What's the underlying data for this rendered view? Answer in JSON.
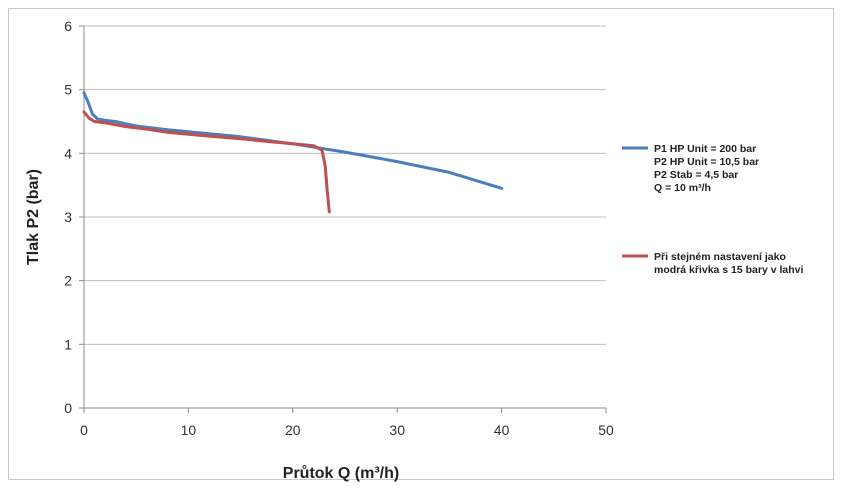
{
  "chart_data": {
    "type": "line",
    "xlabel": "Průtok Q (m³/h)",
    "ylabel": "Tlak P2 (bar)",
    "xlim": [
      0,
      50
    ],
    "ylim": [
      0,
      6
    ],
    "x_ticks": [
      0,
      10,
      20,
      30,
      40,
      50
    ],
    "y_ticks": [
      0,
      1,
      2,
      3,
      4,
      5,
      6
    ],
    "grid": "horizontal",
    "legend_position": "right",
    "series": [
      {
        "name": "P1 HP Unit = 200 bar\nP2 HP Unit = 10,5 bar\nP2 Stab = 4,5 bar\nQ = 10 m³/h",
        "color": "#4a7ebf",
        "x": [
          0,
          0.4,
          0.8,
          1.3,
          2,
          3,
          5,
          8,
          10,
          15,
          20,
          25,
          30,
          35,
          40
        ],
        "y": [
          4.95,
          4.8,
          4.62,
          4.54,
          4.52,
          4.5,
          4.43,
          4.37,
          4.34,
          4.26,
          4.15,
          4.02,
          3.87,
          3.7,
          3.45
        ]
      },
      {
        "name": "Při stejném nastavení jako\nmodrá křivka s 15 bary v lahvi",
        "color": "#c0504d",
        "x": [
          0,
          0.5,
          1,
          2,
          4,
          6,
          8,
          10,
          12,
          15,
          18,
          20,
          22,
          22.8,
          23.1,
          23.3,
          23.5
        ],
        "y": [
          4.65,
          4.55,
          4.5,
          4.48,
          4.42,
          4.38,
          4.33,
          4.3,
          4.27,
          4.23,
          4.18,
          4.15,
          4.12,
          4.05,
          3.8,
          3.4,
          3.08
        ]
      }
    ]
  }
}
